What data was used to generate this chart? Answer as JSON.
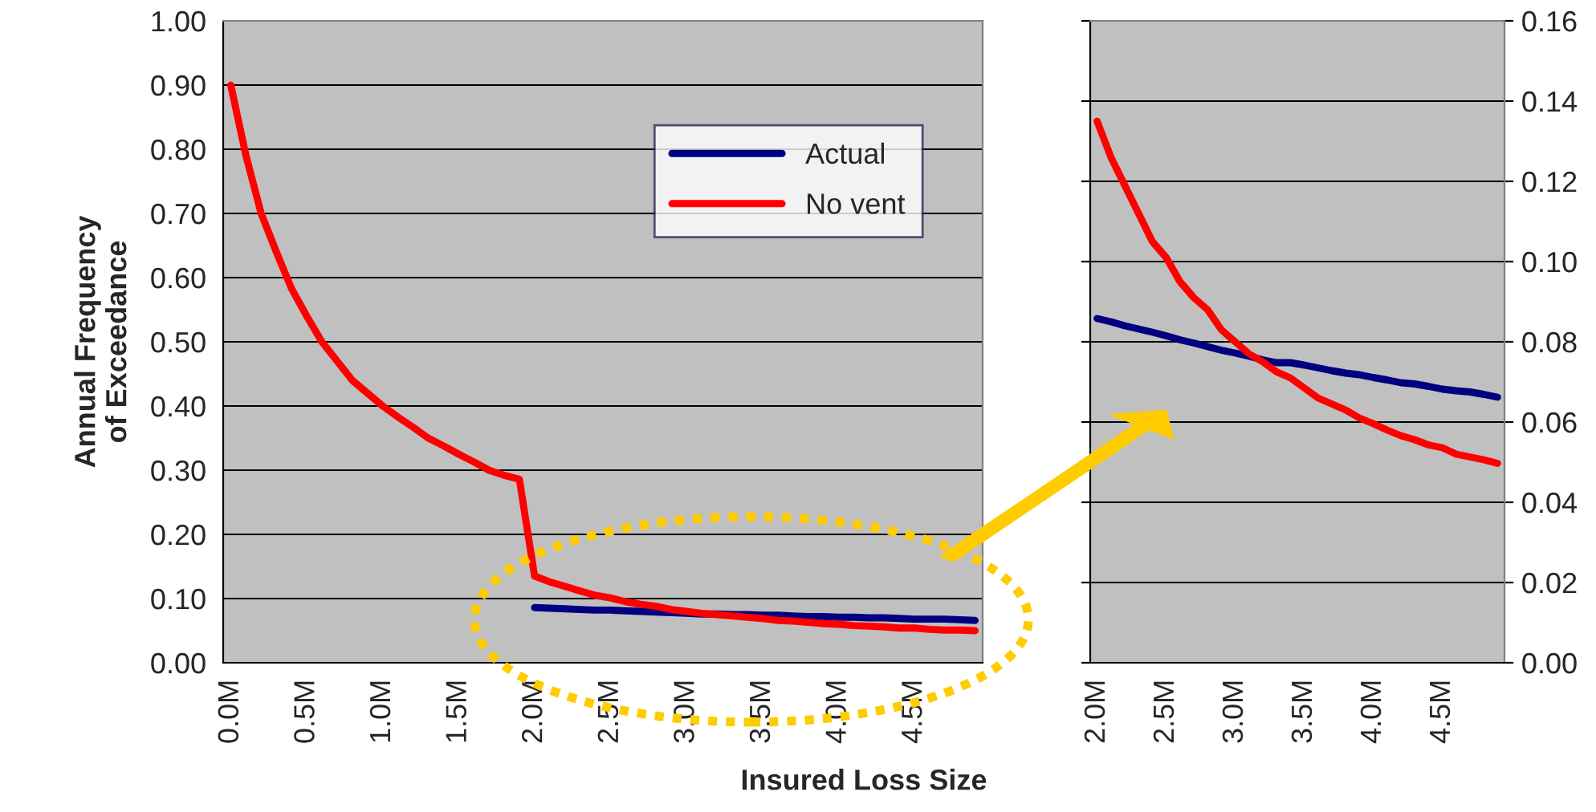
{
  "chart_data": [
    {
      "type": "line",
      "xlabel": "Insured Loss Size",
      "ylabel": "Annual Frequency\nof Exceedance",
      "xlim": [
        -0.05,
        4.95
      ],
      "ylim": [
        0,
        1.0
      ],
      "xticks": [
        {
          "value": 0,
          "label": "0.0M"
        },
        {
          "value": 0.5,
          "label": "0.5M"
        },
        {
          "value": 1.0,
          "label": "1.0M"
        },
        {
          "value": 1.5,
          "label": "1.5M"
        },
        {
          "value": 2.0,
          "label": "2.0M"
        },
        {
          "value": 2.5,
          "label": "2.5M"
        },
        {
          "value": 3.0,
          "label": "3.0M"
        },
        {
          "value": 3.5,
          "label": "3.5M"
        },
        {
          "value": 4.0,
          "label": "4.0M"
        },
        {
          "value": 4.5,
          "label": "4.5M"
        }
      ],
      "yticks": [
        {
          "value": 0,
          "label": "0.00"
        },
        {
          "value": 0.1,
          "label": "0.10"
        },
        {
          "value": 0.2,
          "label": "0.20"
        },
        {
          "value": 0.3,
          "label": "0.30"
        },
        {
          "value": 0.4,
          "label": "0.40"
        },
        {
          "value": 0.5,
          "label": "0.50"
        },
        {
          "value": 0.6,
          "label": "0.60"
        },
        {
          "value": 0.7,
          "label": "0.70"
        },
        {
          "value": 0.8,
          "label": "0.80"
        },
        {
          "value": 0.9,
          "label": "0.90"
        },
        {
          "value": 1.0,
          "label": "1.00"
        }
      ],
      "grid": "y",
      "legend": "top right",
      "x": [
        0.0,
        0.1,
        0.2,
        0.3,
        0.4,
        0.5,
        0.6,
        0.7,
        0.8,
        0.9,
        1.0,
        1.1,
        1.2,
        1.3,
        1.4,
        1.5,
        1.6,
        1.7,
        1.8,
        1.9,
        2.0,
        2.1,
        2.2,
        2.3,
        2.4,
        2.5,
        2.6,
        2.7,
        2.8,
        2.9,
        3.0,
        3.1,
        3.2,
        3.3,
        3.4,
        3.5,
        3.6,
        3.7,
        3.8,
        3.9,
        4.0,
        4.1,
        4.2,
        4.3,
        4.4,
        4.5,
        4.6,
        4.7,
        4.8,
        4.9
      ],
      "series": [
        {
          "name": "Actual",
          "color": "#000080",
          "values": [
            null,
            null,
            null,
            null,
            null,
            null,
            null,
            null,
            null,
            null,
            null,
            null,
            null,
            null,
            null,
            null,
            null,
            null,
            null,
            null,
            0.086,
            0.085,
            0.084,
            0.083,
            0.082,
            0.082,
            0.081,
            0.08,
            0.079,
            0.078,
            0.077,
            0.076,
            0.076,
            0.075,
            0.075,
            0.074,
            0.074,
            0.073,
            0.072,
            0.072,
            0.071,
            0.071,
            0.07,
            0.07,
            0.069,
            0.068,
            0.068,
            0.068,
            0.067,
            0.066
          ]
        },
        {
          "name": "No vent",
          "color": "#ff0000",
          "values": [
            0.9,
            0.79,
            0.7,
            0.64,
            0.583,
            0.54,
            0.5,
            0.47,
            0.44,
            0.42,
            0.4,
            0.383,
            0.367,
            0.35,
            0.338,
            0.325,
            0.313,
            0.3,
            0.292,
            0.286,
            0.135,
            0.126,
            0.119,
            0.112,
            0.105,
            0.101,
            0.095,
            0.091,
            0.088,
            0.083,
            0.08,
            0.077,
            0.075,
            0.073,
            0.071,
            0.069,
            0.066,
            0.065,
            0.063,
            0.061,
            0.06,
            0.058,
            0.057,
            0.056,
            0.054,
            0.054,
            0.052,
            0.051,
            0.051,
            0.05
          ]
        }
      ]
    },
    {
      "type": "line",
      "xlim": [
        1.95,
        4.95
      ],
      "ylim": [
        0,
        0.16
      ],
      "xticks": [
        {
          "value": 2.0,
          "label": "2.0M"
        },
        {
          "value": 2.5,
          "label": "2.5M"
        },
        {
          "value": 3.0,
          "label": "3.0M"
        },
        {
          "value": 3.5,
          "label": "3.5M"
        },
        {
          "value": 4.0,
          "label": "4.0M"
        },
        {
          "value": 4.5,
          "label": "4.5M"
        }
      ],
      "yticks": [
        {
          "value": 0,
          "label": "0.00"
        },
        {
          "value": 0.02,
          "label": "0.02"
        },
        {
          "value": 0.04,
          "label": "0.04"
        },
        {
          "value": 0.06,
          "label": "0.06"
        },
        {
          "value": 0.08,
          "label": "0.08"
        },
        {
          "value": 0.1,
          "label": "0.10"
        },
        {
          "value": 0.12,
          "label": "0.12"
        },
        {
          "value": 0.14,
          "label": "0.14"
        },
        {
          "value": 0.16,
          "label": "0.16"
        }
      ],
      "grid": "y",
      "x": [
        2.0,
        2.1,
        2.2,
        2.3,
        2.4,
        2.5,
        2.6,
        2.7,
        2.8,
        2.9,
        3.0,
        3.1,
        3.2,
        3.3,
        3.4,
        3.5,
        3.6,
        3.7,
        3.8,
        3.9,
        4.0,
        4.1,
        4.2,
        4.3,
        4.4,
        4.5,
        4.6,
        4.7,
        4.8,
        4.9
      ],
      "series": [
        {
          "color": "#000080",
          "values": [
            0.0858,
            0.085,
            0.084,
            0.0832,
            0.0824,
            0.0815,
            0.0805,
            0.0797,
            0.0788,
            0.0779,
            0.0772,
            0.0764,
            0.0755,
            0.0748,
            0.0748,
            0.0742,
            0.0735,
            0.0728,
            0.0722,
            0.0718,
            0.0711,
            0.0705,
            0.0698,
            0.0695,
            0.0689,
            0.0682,
            0.0678,
            0.0675,
            0.0669,
            0.0662
          ]
        },
        {
          "color": "#ff0000",
          "values": [
            0.135,
            0.126,
            0.119,
            0.112,
            0.105,
            0.101,
            0.095,
            0.091,
            0.088,
            0.083,
            0.08,
            0.077,
            0.075,
            0.0725,
            0.071,
            0.0685,
            0.066,
            0.0645,
            0.063,
            0.061,
            0.0596,
            0.058,
            0.0566,
            0.0556,
            0.0543,
            0.0536,
            0.052,
            0.0513,
            0.0506,
            0.0497
          ]
        }
      ]
    }
  ]
}
